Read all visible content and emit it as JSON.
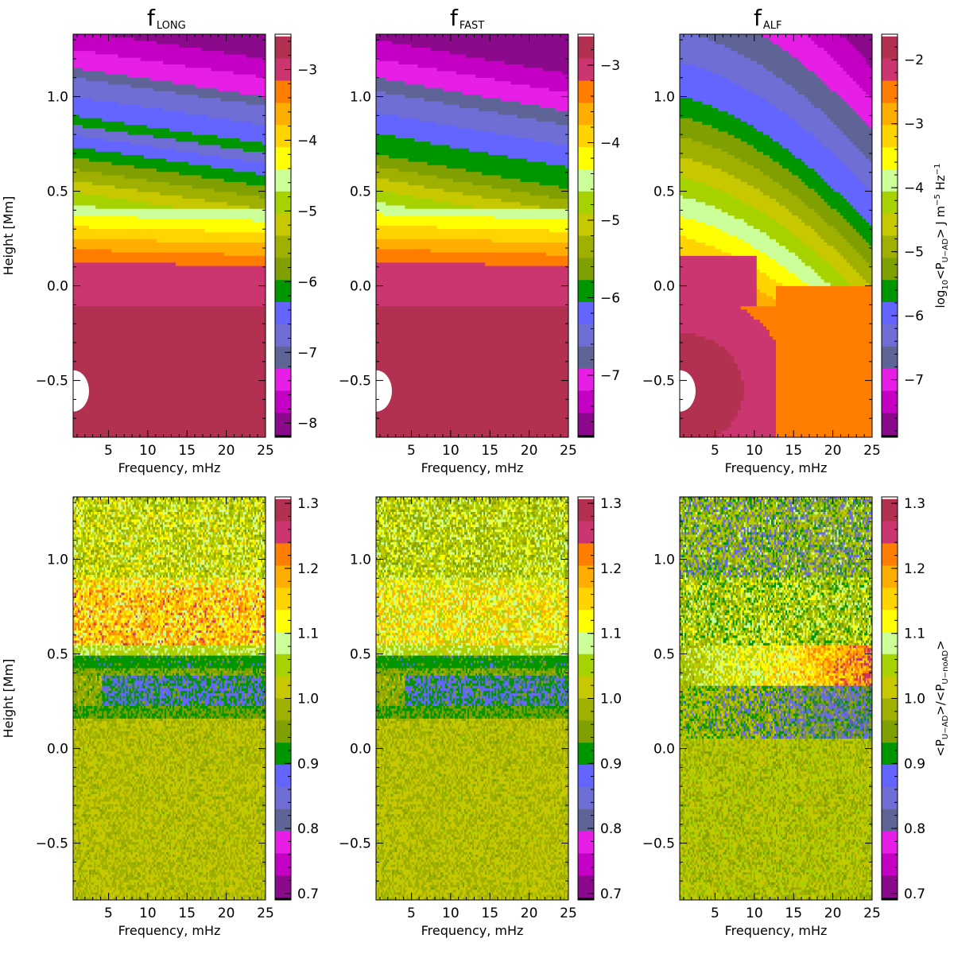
{
  "chart_data": {
    "type": "heatmap",
    "x_range": [
      0.5,
      25
    ],
    "y_range": [
      -0.8,
      1.33
    ],
    "x_ticks": [
      "5",
      "10",
      "15",
      "20",
      "25"
    ],
    "x_tick_values": [
      5,
      10,
      15,
      20,
      25
    ],
    "y_ticks": [
      "−0.5",
      "0.0",
      "0.5",
      "1.0"
    ],
    "y_tick_values": [
      -0.5,
      0.0,
      0.5,
      1.0
    ],
    "xlabel": "Frequency, mHz",
    "ylabel": "Height [Mm]",
    "top_colorbar_label": {
      "pre": "log",
      "sub1": "10",
      "mid1": "<P",
      "sub2": "U−AD",
      "mid2": "> J m",
      "sup1": "−5",
      "mid3": " Hz",
      "sup2": "−1"
    },
    "bottom_colorbar_label": {
      "open1": "<P",
      "sub1": "U−AD",
      "mid": ">/<P",
      "sub2": "U−noAD",
      "close": ">"
    },
    "palette": [
      "#8b0a8b",
      "#c400c4",
      "#e61ee6",
      "#5e6496",
      "#6e6ed4",
      "#6464ff",
      "#009600",
      "#7fa000",
      "#a0b000",
      "#c8c800",
      "#a6d200",
      "#ccff99",
      "#ffff00",
      "#ffd400",
      "#ffae00",
      "#ff7d00",
      "#cc3670",
      "#b23050"
    ],
    "panels": [
      {
        "id": "long-top",
        "title": "f",
        "title_sub": "LONG",
        "row": 0,
        "col": 0,
        "colorbar": {
          "range": [
            -8.2,
            -2.5
          ],
          "ticks": [
            "−8",
            "−7",
            "−6",
            "−5",
            "−4",
            "−3"
          ],
          "tick_values": [
            -8,
            -7,
            -6,
            -5,
            -4,
            -3
          ]
        },
        "white_blob": true
      },
      {
        "id": "fast-top",
        "title": "f",
        "title_sub": "FAST",
        "row": 0,
        "col": 1,
        "colorbar": {
          "range": [
            -7.8,
            -2.6
          ],
          "ticks": [
            "−7",
            "−6",
            "−5",
            "−4",
            "−3"
          ],
          "tick_values": [
            -7,
            -6,
            -5,
            -4,
            -3
          ]
        },
        "white_blob": true
      },
      {
        "id": "alf-top",
        "title": "f",
        "title_sub": "ALF",
        "row": 0,
        "col": 2,
        "colorbar": {
          "range": [
            -7.9,
            -1.6
          ],
          "ticks": [
            "−7",
            "−6",
            "−5",
            "−4",
            "−3",
            "−2"
          ],
          "tick_values": [
            -7,
            -6,
            -5,
            -4,
            -3,
            -2
          ]
        },
        "white_blob": true
      },
      {
        "id": "long-bottom",
        "row": 1,
        "col": 0,
        "colorbar": {
          "range": [
            0.69,
            1.31
          ],
          "ticks": [
            "0.7",
            "0.8",
            "0.9",
            "1.0",
            "1.1",
            "1.2",
            "1.3"
          ],
          "tick_values": [
            0.7,
            0.8,
            0.9,
            1.0,
            1.1,
            1.2,
            1.3
          ]
        }
      },
      {
        "id": "fast-bottom",
        "row": 1,
        "col": 1,
        "colorbar": {
          "range": [
            0.69,
            1.31
          ],
          "ticks": [
            "0.7",
            "0.8",
            "0.9",
            "1.0",
            "1.1",
            "1.2",
            "1.3"
          ],
          "tick_values": [
            0.7,
            0.8,
            0.9,
            1.0,
            1.1,
            1.2,
            1.3
          ]
        }
      },
      {
        "id": "alf-bottom",
        "row": 1,
        "col": 2,
        "colorbar": {
          "range": [
            0.69,
            1.31
          ],
          "ticks": [
            "0.7",
            "0.8",
            "0.9",
            "1.0",
            "1.1",
            "1.2",
            "1.3"
          ],
          "tick_values": [
            0.7,
            0.8,
            0.9,
            1.0,
            1.1,
            1.2,
            1.3
          ]
        }
      }
    ]
  }
}
